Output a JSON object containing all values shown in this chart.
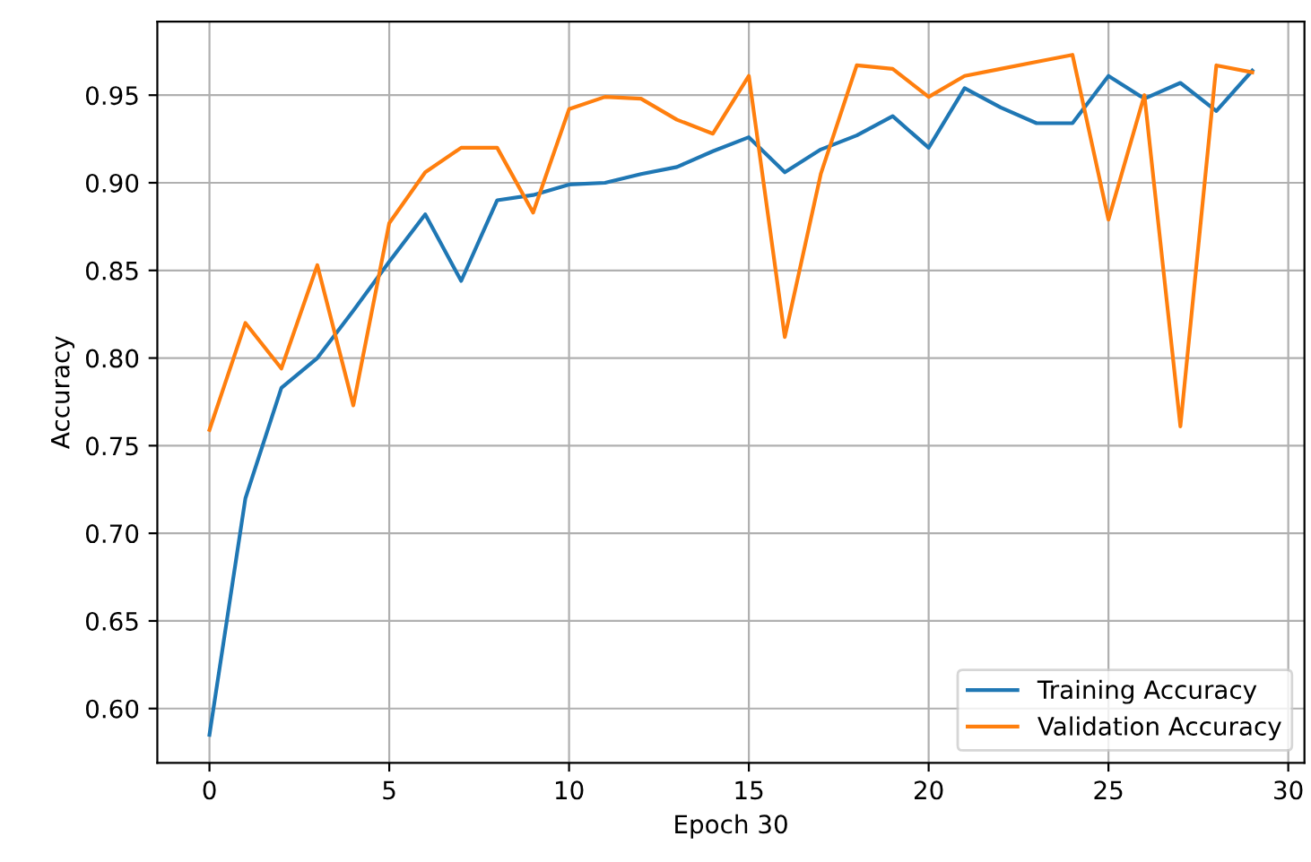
{
  "chart_data": {
    "type": "line",
    "xlabel": "Epoch 30",
    "ylabel": "Accuracy",
    "x": [
      0,
      1,
      2,
      3,
      4,
      5,
      6,
      7,
      8,
      9,
      10,
      11,
      12,
      13,
      14,
      15,
      16,
      17,
      18,
      19,
      20,
      21,
      22,
      23,
      24,
      25,
      26,
      27,
      28,
      29
    ],
    "series": [
      {
        "name": "Training Accuracy",
        "color": "#1f77b4",
        "values": [
          0.585,
          0.72,
          0.783,
          0.8,
          0.827,
          0.855,
          0.882,
          0.844,
          0.89,
          0.893,
          0.899,
          0.9,
          0.905,
          0.909,
          0.918,
          0.926,
          0.906,
          0.919,
          0.927,
          0.938,
          0.92,
          0.954,
          0.943,
          0.934,
          0.934,
          0.961,
          0.948,
          0.957,
          0.941,
          0.964
        ]
      },
      {
        "name": "Validation Accuracy",
        "color": "#ff7f0e",
        "values": [
          0.759,
          0.82,
          0.794,
          0.853,
          0.773,
          0.877,
          0.906,
          0.92,
          0.92,
          0.883,
          0.942,
          0.949,
          0.948,
          0.936,
          0.928,
          0.961,
          0.812,
          0.905,
          0.967,
          0.965,
          0.949,
          0.961,
          0.965,
          0.969,
          0.973,
          0.879,
          0.95,
          0.761,
          0.967,
          0.963
        ]
      }
    ],
    "xlim": [
      -1.45,
      30.45
    ],
    "xticks": [
      0,
      5,
      10,
      15,
      20,
      25,
      30
    ],
    "ylim": [
      0.569,
      0.992
    ],
    "yticks": [
      {
        "value": 0.6,
        "label": "0.60"
      },
      {
        "value": 0.65,
        "label": "0.65"
      },
      {
        "value": 0.7,
        "label": "0.70"
      },
      {
        "value": 0.75,
        "label": "0.75"
      },
      {
        "value": 0.8,
        "label": "0.80"
      },
      {
        "value": 0.85,
        "label": "0.85"
      },
      {
        "value": 0.9,
        "label": "0.90"
      },
      {
        "value": 0.95,
        "label": "0.95"
      }
    ],
    "grid": true,
    "legend": "lower right",
    "marker": "none",
    "line_style": "solid"
  }
}
